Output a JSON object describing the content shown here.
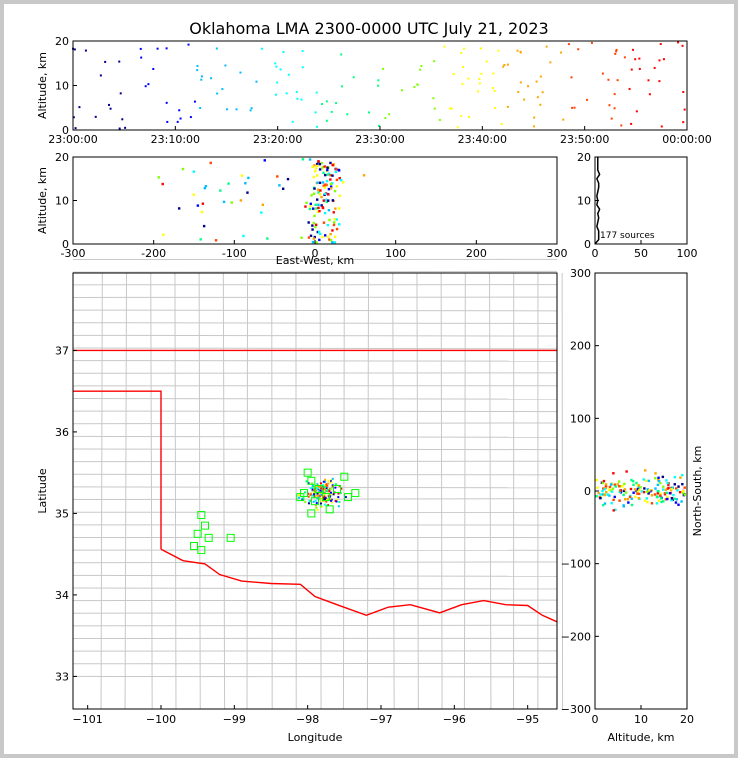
{
  "title": "Oklahoma LMA 2300-0000 UTC July 21, 2023",
  "colors": {
    "frame_bg": "#c8c8c8",
    "border": "#ff0000",
    "county": "#c8c8c8",
    "station": "#00ff00"
  },
  "chart_data": [
    {
      "type": "scatter",
      "panel": "altitude-time",
      "ylabel": "Altitude, km",
      "xlabel": "",
      "xticks": [
        "23:00:00",
        "23:10:00",
        "23:20:00",
        "23:30:00",
        "23:40:00",
        "23:50:00",
        "00:00:00"
      ],
      "yticks": [
        "0",
        "10",
        "20"
      ],
      "xlim_minutes": [
        0,
        60
      ],
      "ylim": [
        0,
        20
      ],
      "colormap": "time (blue → cyan → green → yellow → orange → red)"
    },
    {
      "type": "scatter",
      "panel": "altitude-eastwest",
      "ylabel": "Altitude, km",
      "xlabel": "East-West, km",
      "xticks": [
        "-300",
        "-200",
        "-100",
        "0",
        "100",
        "200",
        "300"
      ],
      "yticks": [
        "0",
        "10",
        "20"
      ],
      "xlim": [
        -300,
        300
      ],
      "ylim": [
        0,
        20
      ]
    },
    {
      "type": "line",
      "panel": "altitude-histogram",
      "xticks": [
        "0",
        "50",
        "100"
      ],
      "yticks": [
        "0",
        "10",
        "20"
      ],
      "xlim": [
        0,
        100
      ],
      "ylim": [
        0,
        20
      ],
      "annotation": "177 sources"
    },
    {
      "type": "scatter",
      "panel": "plan-view",
      "xlabel": "Longitude",
      "ylabel": "Latitude",
      "xticks": [
        "−101",
        "−100",
        "−99",
        "−98",
        "−97",
        "−96",
        "−95"
      ],
      "yticks": [
        "33",
        "34",
        "35",
        "36",
        "37"
      ],
      "xlim": [
        -101.2,
        -94.6
      ],
      "ylim": [
        32.6,
        37.95
      ],
      "stations": [
        [
          -98.0,
          35.5
        ],
        [
          -97.95,
          35.4
        ],
        [
          -98.05,
          35.25
        ],
        [
          -97.85,
          35.3
        ],
        [
          -97.9,
          35.15
        ],
        [
          -97.75,
          35.2
        ],
        [
          -97.6,
          35.3
        ],
        [
          -97.7,
          35.05
        ],
        [
          -97.45,
          35.2
        ],
        [
          -97.35,
          35.25
        ],
        [
          -97.95,
          35.0
        ],
        [
          -98.1,
          35.2
        ],
        [
          -97.5,
          35.45
        ],
        [
          -99.45,
          34.98
        ],
        [
          -99.4,
          34.85
        ],
        [
          -99.35,
          34.7
        ],
        [
          -99.5,
          34.75
        ],
        [
          -99.45,
          34.55
        ],
        [
          -99.05,
          34.7
        ],
        [
          -99.55,
          34.6
        ]
      ]
    },
    {
      "type": "scatter",
      "panel": "northsouth-altitude",
      "xlabel": "Altitude, km",
      "ylabel": "North-South, km",
      "xticks": [
        "0",
        "10",
        "20"
      ],
      "yticks": [
        "−300",
        "−200",
        "−100",
        "0",
        "100",
        "200",
        "300"
      ],
      "xlim": [
        0,
        20
      ],
      "ylim": [
        -300,
        300
      ]
    }
  ]
}
